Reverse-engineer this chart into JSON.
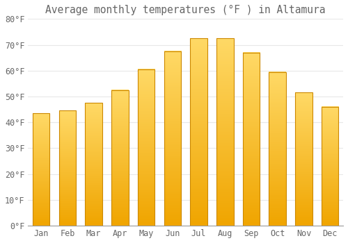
{
  "title": "Average monthly temperatures (°F ) in Altamura",
  "months": [
    "Jan",
    "Feb",
    "Mar",
    "Apr",
    "May",
    "Jun",
    "Jul",
    "Aug",
    "Sep",
    "Oct",
    "Nov",
    "Dec"
  ],
  "values": [
    43.5,
    44.5,
    47.5,
    52.5,
    60.5,
    67.5,
    72.5,
    72.5,
    67.0,
    59.5,
    51.5,
    46.0
  ],
  "bar_color_top": "#FFD966",
  "bar_color_bottom": "#F0A500",
  "bar_edge_color": "#CC8800",
  "background_color": "#FFFFFF",
  "grid_color": "#E8E8E8",
  "text_color": "#666666",
  "ylim": [
    0,
    80
  ],
  "yticks": [
    0,
    10,
    20,
    30,
    40,
    50,
    60,
    70,
    80
  ],
  "title_fontsize": 10.5,
  "tick_fontsize": 8.5,
  "bar_width": 0.65
}
